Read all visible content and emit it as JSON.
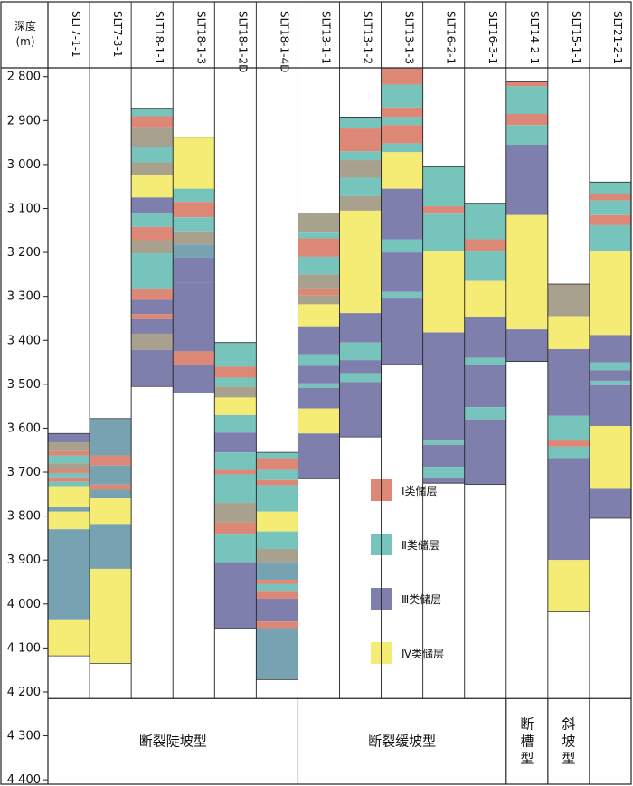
{
  "axis": {
    "label_line1": "深度",
    "label_line2": "(m)",
    "depth_min": 2780,
    "depth_max": 4410,
    "ticks": [
      2800,
      2900,
      3000,
      3100,
      3200,
      3300,
      3400,
      3500,
      3600,
      3700,
      3800,
      3900,
      4000,
      4100,
      4200,
      4300,
      4400
    ],
    "tick_labels": [
      "2 800",
      "2 900",
      "3 000",
      "3 100",
      "3 200",
      "3 300",
      "3 400",
      "3 500",
      "3 600",
      "3 700",
      "3 800",
      "3 900",
      "4 000",
      "4 100",
      "4 200",
      "4 300",
      "4 400"
    ],
    "log_bottom": 4215
  },
  "colors": {
    "I": "#dd8877",
    "II": "#77c4bd",
    "III": "#7f7fae",
    "IV": "#f4ec74",
    "mixA": "#a8a18e",
    "mixB": "#76a2b1",
    "border": "#222222"
  },
  "legend": {
    "title": "",
    "items": [
      {
        "key": "I",
        "label": "Ⅰ类储层"
      },
      {
        "key": "II",
        "label": "Ⅱ类储层"
      },
      {
        "key": "III",
        "label": "Ⅲ类储层"
      },
      {
        "key": "IV",
        "label": "Ⅳ类储层"
      }
    ]
  },
  "groups": [
    {
      "label": "断裂陡坡型",
      "from": 0,
      "to": 6,
      "vertical": false
    },
    {
      "label": "断裂缓坡型",
      "from": 6,
      "to": 11,
      "vertical": false
    },
    {
      "label": "断槽型",
      "from": 11,
      "to": 12,
      "vertical": true
    },
    {
      "label": "斜坡型",
      "from": 12,
      "to": 13,
      "vertical": true
    }
  ],
  "wells": [
    {
      "name": "SLT7-1-1",
      "top": 3612,
      "bottom": 4118,
      "layers": [
        [
          "III",
          3612,
          3632
        ],
        [
          "mixA",
          3632,
          3652
        ],
        [
          "I",
          3652,
          3662
        ],
        [
          "II",
          3662,
          3680
        ],
        [
          "mixA",
          3680,
          3692
        ],
        [
          "I",
          3692,
          3702
        ],
        [
          "II",
          3702,
          3712
        ],
        [
          "I",
          3712,
          3722
        ],
        [
          "II",
          3722,
          3732
        ],
        [
          "IV",
          3732,
          3780
        ],
        [
          "mixB",
          3780,
          3790
        ],
        [
          "IV",
          3790,
          3830
        ],
        [
          "mixB",
          3830,
          4035
        ],
        [
          "IV",
          4035,
          4118
        ]
      ]
    },
    {
      "name": "SLT7-3-1",
      "top": 3578,
      "bottom": 4135,
      "layers": [
        [
          "mixB",
          3578,
          3662
        ],
        [
          "I",
          3662,
          3685
        ],
        [
          "mixB",
          3685,
          3728
        ],
        [
          "I",
          3728,
          3740
        ],
        [
          "mixB",
          3740,
          3760
        ],
        [
          "IV",
          3760,
          3818
        ],
        [
          "mixB",
          3818,
          3920
        ],
        [
          "IV",
          3920,
          4135
        ]
      ]
    },
    {
      "name": "SLT18-1-1",
      "top": 2872,
      "bottom": 3505,
      "layers": [
        [
          "II",
          2872,
          2890
        ],
        [
          "I",
          2890,
          2915
        ],
        [
          "mixA",
          2915,
          2960
        ],
        [
          "II",
          2960,
          2995
        ],
        [
          "mixA",
          2995,
          3025
        ],
        [
          "IV",
          3025,
          3075
        ],
        [
          "III",
          3075,
          3112
        ],
        [
          "II",
          3112,
          3142
        ],
        [
          "I",
          3142,
          3172
        ],
        [
          "mixA",
          3172,
          3202
        ],
        [
          "II",
          3202,
          3282
        ],
        [
          "I",
          3282,
          3308
        ],
        [
          "III",
          3308,
          3340
        ],
        [
          "I",
          3340,
          3352
        ],
        [
          "III",
          3352,
          3385
        ],
        [
          "mixA",
          3385,
          3422
        ],
        [
          "III",
          3422,
          3505
        ]
      ]
    },
    {
      "name": "SLT18-1-3",
      "top": 2938,
      "bottom": 3520,
      "layers": [
        [
          "IV",
          2938,
          3055
        ],
        [
          "II",
          3055,
          3085
        ],
        [
          "I",
          3085,
          3120
        ],
        [
          "II",
          3120,
          3152
        ],
        [
          "mixA",
          3152,
          3182
        ],
        [
          "mixB",
          3182,
          3212
        ],
        [
          "III",
          3212,
          3268
        ],
        [
          "III",
          3268,
          3425
        ],
        [
          "I",
          3425,
          3455
        ],
        [
          "III",
          3455,
          3520
        ]
      ]
    },
    {
      "name": "SLT18-1-2D",
      "top": 3405,
      "bottom": 4055,
      "layers": [
        [
          "II",
          3405,
          3460
        ],
        [
          "I",
          3460,
          3485
        ],
        [
          "II",
          3485,
          3505
        ],
        [
          "mixA",
          3505,
          3530
        ],
        [
          "IV",
          3530,
          3570
        ],
        [
          "II",
          3570,
          3610
        ],
        [
          "III",
          3610,
          3655
        ],
        [
          "II",
          3655,
          3695
        ],
        [
          "I",
          3695,
          3705
        ],
        [
          "II",
          3705,
          3770
        ],
        [
          "mixA",
          3770,
          3815
        ],
        [
          "I",
          3815,
          3840
        ],
        [
          "II",
          3840,
          3905
        ],
        [
          "III",
          3905,
          4055
        ]
      ]
    },
    {
      "name": "SLT18-1-4D",
      "top": 3655,
      "bottom": 4172,
      "layers": [
        [
          "II",
          3655,
          3668
        ],
        [
          "I",
          3668,
          3695
        ],
        [
          "II",
          3695,
          3718
        ],
        [
          "I",
          3718,
          3730
        ],
        [
          "II",
          3730,
          3790
        ],
        [
          "IV",
          3790,
          3835
        ],
        [
          "II",
          3835,
          3875
        ],
        [
          "mixA",
          3875,
          3905
        ],
        [
          "mixB",
          3905,
          3945
        ],
        [
          "I",
          3945,
          3955
        ],
        [
          "II",
          3955,
          3970
        ],
        [
          "I",
          3970,
          3988
        ],
        [
          "III",
          3988,
          4040
        ],
        [
          "I",
          4040,
          4055
        ],
        [
          "mixB",
          4055,
          4172
        ]
      ]
    },
    {
      "name": "SLT13-1-1",
      "top": 3110,
      "bottom": 3715,
      "layers": [
        [
          "mixA",
          3110,
          3155
        ],
        [
          "II",
          3155,
          3168
        ],
        [
          "I",
          3168,
          3210
        ],
        [
          "II",
          3210,
          3250
        ],
        [
          "mixA",
          3250,
          3282
        ],
        [
          "I",
          3282,
          3298
        ],
        [
          "mixA",
          3298,
          3318
        ],
        [
          "IV",
          3318,
          3368
        ],
        [
          "III",
          3368,
          3432
        ],
        [
          "II",
          3432,
          3458
        ],
        [
          "III",
          3458,
          3498
        ],
        [
          "II",
          3498,
          3508
        ],
        [
          "III",
          3508,
          3555
        ],
        [
          "IV",
          3555,
          3612
        ],
        [
          "III",
          3612,
          3715
        ]
      ]
    },
    {
      "name": "SLT13-1-2",
      "top": 2892,
      "bottom": 3620,
      "layers": [
        [
          "II",
          2892,
          2918
        ],
        [
          "I",
          2918,
          2970
        ],
        [
          "II",
          2970,
          2990
        ],
        [
          "mixA",
          2990,
          3030
        ],
        [
          "II",
          3030,
          3072
        ],
        [
          "mixA",
          3072,
          3105
        ],
        [
          "IV",
          3105,
          3338
        ],
        [
          "III",
          3338,
          3405
        ],
        [
          "II",
          3405,
          3445
        ],
        [
          "III",
          3445,
          3475
        ],
        [
          "II",
          3475,
          3495
        ],
        [
          "III",
          3495,
          3620
        ]
      ]
    },
    {
      "name": "SLT13-1-3",
      "top": 2780,
      "bottom": 3455,
      "layers": [
        [
          "I",
          2780,
          2818
        ],
        [
          "II",
          2818,
          2870
        ],
        [
          "I",
          2870,
          2892
        ],
        [
          "II",
          2892,
          2910
        ],
        [
          "I",
          2910,
          2952
        ],
        [
          "II",
          2952,
          2972
        ],
        [
          "IV",
          2972,
          3055
        ],
        [
          "III",
          3055,
          3170
        ],
        [
          "II",
          3170,
          3200
        ],
        [
          "III",
          3200,
          3290
        ],
        [
          "II",
          3290,
          3305
        ],
        [
          "III",
          3305,
          3455
        ]
      ]
    },
    {
      "name": "SLT16-2-1",
      "top": 3005,
      "bottom": 3725,
      "layers": [
        [
          "II",
          3005,
          3095
        ],
        [
          "I",
          3095,
          3112
        ],
        [
          "II",
          3112,
          3198
        ],
        [
          "IV",
          3198,
          3382
        ],
        [
          "III",
          3382,
          3628
        ],
        [
          "II",
          3628,
          3638
        ],
        [
          "III",
          3638,
          3688
        ],
        [
          "II",
          3688,
          3712
        ],
        [
          "III",
          3712,
          3725
        ]
      ]
    },
    {
      "name": "SLT16-3-1",
      "top": 3088,
      "bottom": 3728,
      "layers": [
        [
          "II",
          3088,
          3170
        ],
        [
          "I",
          3170,
          3198
        ],
        [
          "II",
          3198,
          3265
        ],
        [
          "IV",
          3265,
          3348
        ],
        [
          "III",
          3348,
          3440
        ],
        [
          "II",
          3440,
          3455
        ],
        [
          "III",
          3455,
          3552
        ],
        [
          "II",
          3552,
          3580
        ],
        [
          "III",
          3580,
          3728
        ]
      ]
    },
    {
      "name": "SLT14-2-1",
      "top": 2812,
      "bottom": 3448,
      "layers": [
        [
          "I",
          2812,
          2822
        ],
        [
          "II",
          2822,
          2885
        ],
        [
          "I",
          2885,
          2910
        ],
        [
          "II",
          2910,
          2955
        ],
        [
          "III",
          2955,
          3115
        ],
        [
          "IV",
          3115,
          3375
        ],
        [
          "III",
          3375,
          3448
        ]
      ]
    },
    {
      "name": "SLT15-1-1",
      "top": 3272,
      "bottom": 4018,
      "layers": [
        [
          "mixA",
          3272,
          3345
        ],
        [
          "IV",
          3345,
          3420
        ],
        [
          "III",
          3420,
          3572
        ],
        [
          "II",
          3572,
          3628
        ],
        [
          "I",
          3628,
          3642
        ],
        [
          "II",
          3642,
          3668
        ],
        [
          "III",
          3668,
          3900
        ],
        [
          "IV",
          3900,
          4018
        ]
      ]
    },
    {
      "name": "SLT21-2-1",
      "top": 3040,
      "bottom": 3805,
      "layers": [
        [
          "II",
          3040,
          3068
        ],
        [
          "I",
          3068,
          3082
        ],
        [
          "II",
          3082,
          3115
        ],
        [
          "I",
          3115,
          3138
        ],
        [
          "II",
          3138,
          3198
        ],
        [
          "IV",
          3198,
          3388
        ],
        [
          "III",
          3388,
          3450
        ],
        [
          "II",
          3450,
          3468
        ],
        [
          "III",
          3468,
          3492
        ],
        [
          "II",
          3492,
          3502
        ],
        [
          "III",
          3502,
          3595
        ],
        [
          "IV",
          3595,
          3738
        ],
        [
          "III",
          3738,
          3805
        ]
      ]
    }
  ]
}
